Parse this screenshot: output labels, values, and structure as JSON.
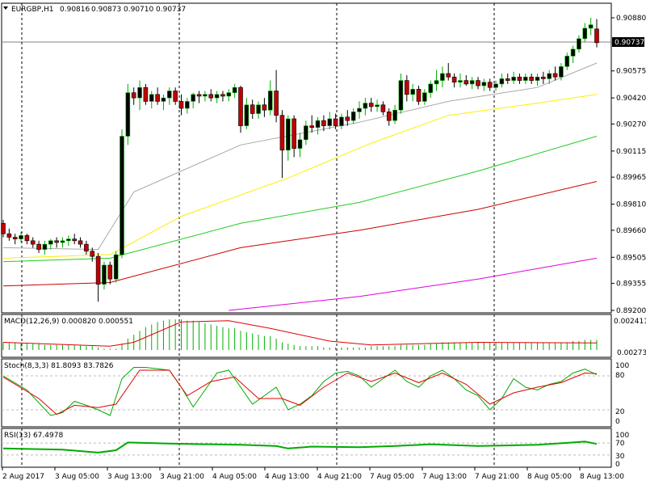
{
  "chart_data": {
    "type": "candlestick",
    "header": {
      "symbol": "EURGBP,H1",
      "open": "0.90816",
      "high": "0.90873",
      "low": "0.90710",
      "close": "0.90737"
    },
    "current_price": "0.90737",
    "price_axis": {
      "ticks": [
        "0.90880",
        "0.90575",
        "0.90420",
        "0.90270",
        "0.90115",
        "0.89965",
        "0.89810",
        "0.89660",
        "0.89505",
        "0.89355",
        "0.89200"
      ],
      "ylim": [
        0.892,
        0.9088
      ]
    },
    "time_axis": [
      "2 Aug 2017",
      "3 Aug 05:00",
      "3 Aug 13:00",
      "3 Aug 21:00",
      "4 Aug 05:00",
      "4 Aug 13:00",
      "4 Aug 21:00",
      "7 Aug 05:00",
      "7 Aug 13:00",
      "7 Aug 21:00",
      "8 Aug 05:00",
      "8 Aug 13:00"
    ],
    "period_separators": [
      "3 Aug 21:00",
      "4 Aug 21:00",
      "7 Aug 21:00"
    ],
    "candles": [
      [
        0.897,
        0.8972,
        0.8962,
        0.8964
      ],
      [
        0.8964,
        0.8967,
        0.896,
        0.8962
      ],
      [
        0.8962,
        0.8964,
        0.8958,
        0.8961
      ],
      [
        0.8961,
        0.8965,
        0.8959,
        0.8963
      ],
      [
        0.8963,
        0.8964,
        0.8958,
        0.896
      ],
      [
        0.896,
        0.8962,
        0.8956,
        0.8958
      ],
      [
        0.8958,
        0.896,
        0.8953,
        0.8955
      ],
      [
        0.8955,
        0.896,
        0.8952,
        0.8958
      ],
      [
        0.8958,
        0.8961,
        0.8955,
        0.896
      ],
      [
        0.896,
        0.8962,
        0.8956,
        0.8959
      ],
      [
        0.8959,
        0.8962,
        0.8956,
        0.896
      ],
      [
        0.896,
        0.8963,
        0.8957,
        0.8961
      ],
      [
        0.8961,
        0.8964,
        0.8958,
        0.896
      ],
      [
        0.896,
        0.8962,
        0.8956,
        0.8958
      ],
      [
        0.8958,
        0.896,
        0.8952,
        0.8954
      ],
      [
        0.8954,
        0.8956,
        0.8948,
        0.8951
      ],
      [
        0.8951,
        0.8953,
        0.8925,
        0.8935
      ],
      [
        0.8935,
        0.8948,
        0.8932,
        0.8946
      ],
      [
        0.8946,
        0.8948,
        0.8935,
        0.8938
      ],
      [
        0.8938,
        0.8954,
        0.8936,
        0.8952
      ],
      [
        0.8952,
        0.9024,
        0.895,
        0.902
      ],
      [
        0.902,
        0.905,
        0.9015,
        0.9045
      ],
      [
        0.9045,
        0.9048,
        0.9038,
        0.9042
      ],
      [
        0.9042,
        0.9052,
        0.9035,
        0.9048
      ],
      [
        0.9048,
        0.905,
        0.9038,
        0.904
      ],
      [
        0.904,
        0.9046,
        0.9036,
        0.9044
      ],
      [
        0.9044,
        0.9048,
        0.9038,
        0.904
      ],
      [
        0.904,
        0.9044,
        0.9035,
        0.9042
      ],
      [
        0.9042,
        0.9048,
        0.9038,
        0.9046
      ],
      [
        0.9046,
        0.9048,
        0.9038,
        0.904
      ],
      [
        0.904,
        0.9044,
        0.9032,
        0.9036
      ],
      [
        0.9036,
        0.9042,
        0.9033,
        0.904
      ],
      [
        0.904,
        0.9045,
        0.9036,
        0.9044
      ],
      [
        0.9044,
        0.9046,
        0.9039,
        0.9043
      ],
      [
        0.9043,
        0.9046,
        0.904,
        0.9044
      ],
      [
        0.9044,
        0.9047,
        0.904,
        0.9042
      ],
      [
        0.9042,
        0.9046,
        0.9039,
        0.9044
      ],
      [
        0.9044,
        0.9046,
        0.904,
        0.9043
      ],
      [
        0.9043,
        0.9047,
        0.904,
        0.9045
      ],
      [
        0.9045,
        0.905,
        0.9042,
        0.9048
      ],
      [
        0.9048,
        0.9049,
        0.9022,
        0.9026
      ],
      [
        0.9026,
        0.9042,
        0.9024,
        0.9038
      ],
      [
        0.9038,
        0.9041,
        0.903,
        0.9033
      ],
      [
        0.9033,
        0.904,
        0.903,
        0.9038
      ],
      [
        0.9038,
        0.9042,
        0.9031,
        0.9035
      ],
      [
        0.9035,
        0.9052,
        0.9032,
        0.9046
      ],
      [
        0.9046,
        0.9058,
        0.9028,
        0.9032
      ],
      [
        0.9032,
        0.9035,
        0.8996,
        0.9012
      ],
      [
        0.9012,
        0.9032,
        0.9006,
        0.903
      ],
      [
        0.903,
        0.9032,
        0.9008,
        0.9013
      ],
      [
        0.9013,
        0.9022,
        0.9008,
        0.9018
      ],
      [
        0.9018,
        0.9029,
        0.9015,
        0.9026
      ],
      [
        0.9026,
        0.9032,
        0.9022,
        0.9025
      ],
      [
        0.9025,
        0.9031,
        0.9021,
        0.9029
      ],
      [
        0.9029,
        0.9032,
        0.9023,
        0.9026
      ],
      [
        0.9026,
        0.9034,
        0.9024,
        0.903
      ],
      [
        0.903,
        0.9033,
        0.9024,
        0.9026
      ],
      [
        0.9026,
        0.9033,
        0.9024,
        0.9031
      ],
      [
        0.9031,
        0.9035,
        0.9026,
        0.9029
      ],
      [
        0.9029,
        0.9036,
        0.9027,
        0.9034
      ],
      [
        0.9034,
        0.904,
        0.903,
        0.9036
      ],
      [
        0.9036,
        0.9042,
        0.9032,
        0.9039
      ],
      [
        0.9039,
        0.9042,
        0.9034,
        0.9037
      ],
      [
        0.9037,
        0.9041,
        0.9034,
        0.9038
      ],
      [
        0.9038,
        0.904,
        0.9032,
        0.9034
      ],
      [
        0.9034,
        0.9036,
        0.9026,
        0.9029
      ],
      [
        0.9029,
        0.9038,
        0.9027,
        0.9035
      ],
      [
        0.9035,
        0.9056,
        0.9033,
        0.9052
      ],
      [
        0.9052,
        0.9055,
        0.904,
        0.9044
      ],
      [
        0.9044,
        0.905,
        0.904,
        0.9047
      ],
      [
        0.9047,
        0.9049,
        0.9038,
        0.904
      ],
      [
        0.904,
        0.9047,
        0.9038,
        0.9045
      ],
      [
        0.9045,
        0.9052,
        0.9042,
        0.905
      ],
      [
        0.905,
        0.9058,
        0.9046,
        0.9052
      ],
      [
        0.9052,
        0.906,
        0.9048,
        0.9056
      ],
      [
        0.9056,
        0.9062,
        0.9052,
        0.9054
      ],
      [
        0.9054,
        0.9056,
        0.9048,
        0.9051
      ],
      [
        0.9051,
        0.9056,
        0.9048,
        0.9052
      ],
      [
        0.9052,
        0.9055,
        0.9049,
        0.905
      ],
      [
        0.905,
        0.9054,
        0.9047,
        0.9052
      ],
      [
        0.9052,
        0.9054,
        0.9047,
        0.9049
      ],
      [
        0.9049,
        0.9053,
        0.9046,
        0.9051
      ],
      [
        0.9051,
        0.9053,
        0.9046,
        0.9048
      ],
      [
        0.9048,
        0.9052,
        0.9046,
        0.905
      ],
      [
        0.905,
        0.9056,
        0.9048,
        0.9053
      ],
      [
        0.9053,
        0.9056,
        0.905,
        0.9052
      ],
      [
        0.9052,
        0.9057,
        0.905,
        0.9054
      ],
      [
        0.9054,
        0.9056,
        0.905,
        0.9052
      ],
      [
        0.9052,
        0.9056,
        0.905,
        0.9054
      ],
      [
        0.9054,
        0.9056,
        0.905,
        0.9052
      ],
      [
        0.9052,
        0.9056,
        0.9049,
        0.9054
      ],
      [
        0.9054,
        0.9057,
        0.905,
        0.9053
      ],
      [
        0.9053,
        0.9058,
        0.905,
        0.9056
      ],
      [
        0.9056,
        0.906,
        0.9052,
        0.9054
      ],
      [
        0.9054,
        0.9062,
        0.9052,
        0.906
      ],
      [
        0.906,
        0.9068,
        0.9058,
        0.9066
      ],
      [
        0.9066,
        0.9072,
        0.9062,
        0.907
      ],
      [
        0.907,
        0.9078,
        0.9068,
        0.9076
      ],
      [
        0.9076,
        0.9085,
        0.9074,
        0.9082
      ],
      [
        0.9082,
        0.9088,
        0.9078,
        0.9084
      ],
      [
        0.90816,
        0.90873,
        0.9071,
        0.90737
      ]
    ],
    "moving_averages": [
      {
        "color": "#a8a8a8",
        "values": [
          [
            0,
            0.8956
          ],
          [
            16,
            0.8955
          ],
          [
            22,
            0.8988
          ],
          [
            40,
            0.9015
          ],
          [
            60,
            0.9028
          ],
          [
            75,
            0.904
          ],
          [
            90,
            0.9048
          ],
          [
            100,
            0.9062
          ]
        ]
      },
      {
        "color": "#ffee00",
        "values": [
          [
            0,
            0.895
          ],
          [
            18,
            0.8952
          ],
          [
            30,
            0.8974
          ],
          [
            48,
            0.8996
          ],
          [
            62,
            0.9016
          ],
          [
            75,
            0.9032
          ],
          [
            90,
            0.9039
          ],
          [
            100,
            0.9044
          ]
        ]
      },
      {
        "color": "#22cc22",
        "values": [
          [
            0,
            0.8948
          ],
          [
            18,
            0.895
          ],
          [
            40,
            0.897
          ],
          [
            60,
            0.8982
          ],
          [
            80,
            0.9
          ],
          [
            100,
            0.902
          ]
        ]
      },
      {
        "color": "#cc0000",
        "values": [
          [
            0,
            0.8934
          ],
          [
            18,
            0.8936
          ],
          [
            40,
            0.8956
          ],
          [
            60,
            0.8966
          ],
          [
            80,
            0.8978
          ],
          [
            100,
            0.8994
          ]
        ]
      },
      {
        "color": "#dd00dd",
        "values": [
          [
            38,
            0.892
          ],
          [
            60,
            0.8928
          ],
          [
            80,
            0.8938
          ],
          [
            100,
            0.895
          ]
        ]
      }
    ],
    "macd": {
      "label": "MACD(12,26,9) 0.000820 0.000551",
      "ticks": [
        "0.002411",
        "0.00273"
      ],
      "histogram": [
        0.0006,
        0.0006,
        0.0006,
        0.0005,
        0.0005,
        0.0005,
        0.0005,
        0.0004,
        0.0004,
        0.0004,
        0.0004,
        0.0004,
        0.0004,
        0.0004,
        0.0003,
        0.0003,
        0.0002,
        0.0001,
        0.0001,
        0.0001,
        0.0005,
        0.0009,
        0.0012,
        0.0015,
        0.0018,
        0.002,
        0.0022,
        0.0023,
        0.0024,
        0.0024,
        0.0024,
        0.0023,
        0.0023,
        0.0022,
        0.0021,
        0.002,
        0.0019,
        0.0018,
        0.0017,
        0.0017,
        0.0015,
        0.0014,
        0.0013,
        0.0012,
        0.0011,
        0.0011,
        0.0009,
        0.0006,
        0.0005,
        0.0004,
        0.0003,
        0.0003,
        0.0003,
        0.0003,
        0.0002,
        0.0002,
        0.0002,
        0.0002,
        0.0002,
        0.0002,
        0.0002,
        0.0002,
        0.0003,
        0.0003,
        0.0003,
        0.0003,
        0.0003,
        0.0004,
        0.0004,
        0.0004,
        0.0004,
        0.0004,
        0.0005,
        0.0005,
        0.0006,
        0.0006,
        0.0006,
        0.0006,
        0.0006,
        0.0006,
        0.0006,
        0.0006,
        0.0006,
        0.0006,
        0.0006,
        0.0006,
        0.0006,
        0.0006,
        0.0006,
        0.0006,
        0.0006,
        0.0006,
        0.0006,
        0.0006,
        0.0006,
        0.0006,
        0.0007,
        0.0007,
        0.0008,
        0.0008,
        0.0008
      ],
      "signal": [
        [
          0,
          0.0006
        ],
        [
          18,
          0.0003
        ],
        [
          22,
          0.0006
        ],
        [
          30,
          0.0022
        ],
        [
          38,
          0.0023
        ],
        [
          45,
          0.0017
        ],
        [
          55,
          0.0007
        ],
        [
          62,
          0.0004
        ],
        [
          80,
          0.0006
        ],
        [
          100,
          0.00055
        ]
      ]
    },
    "stochastic": {
      "label": "Stoch(8,3,3) 81.8093 83.7826",
      "ticks": [
        "100",
        "80",
        "20",
        "0"
      ],
      "main": [
        [
          0,
          80
        ],
        [
          4,
          55
        ],
        [
          8,
          10
        ],
        [
          10,
          15
        ],
        [
          12,
          35
        ],
        [
          14,
          28
        ],
        [
          16,
          20
        ],
        [
          18,
          10
        ],
        [
          20,
          75
        ],
        [
          22,
          95
        ],
        [
          24,
          95
        ],
        [
          28,
          90
        ],
        [
          30,
          60
        ],
        [
          32,
          25
        ],
        [
          34,
          55
        ],
        [
          36,
          85
        ],
        [
          38,
          90
        ],
        [
          40,
          60
        ],
        [
          42,
          30
        ],
        [
          44,
          45
        ],
        [
          46,
          60
        ],
        [
          48,
          20
        ],
        [
          50,
          30
        ],
        [
          52,
          45
        ],
        [
          54,
          70
        ],
        [
          56,
          85
        ],
        [
          58,
          88
        ],
        [
          60,
          80
        ],
        [
          62,
          60
        ],
        [
          64,
          75
        ],
        [
          66,
          90
        ],
        [
          68,
          70
        ],
        [
          70,
          60
        ],
        [
          72,
          80
        ],
        [
          74,
          90
        ],
        [
          76,
          75
        ],
        [
          78,
          55
        ],
        [
          80,
          45
        ],
        [
          82,
          20
        ],
        [
          84,
          40
        ],
        [
          86,
          75
        ],
        [
          88,
          60
        ],
        [
          90,
          55
        ],
        [
          92,
          65
        ],
        [
          94,
          70
        ],
        [
          96,
          85
        ],
        [
          98,
          92
        ],
        [
          100,
          82
        ]
      ],
      "signal": [
        [
          0,
          78
        ],
        [
          6,
          40
        ],
        [
          9,
          12
        ],
        [
          12,
          28
        ],
        [
          16,
          24
        ],
        [
          19,
          30
        ],
        [
          23,
          90
        ],
        [
          28,
          90
        ],
        [
          31,
          45
        ],
        [
          35,
          70
        ],
        [
          39,
          78
        ],
        [
          43,
          40
        ],
        [
          47,
          40
        ],
        [
          50,
          28
        ],
        [
          54,
          60
        ],
        [
          58,
          85
        ],
        [
          62,
          70
        ],
        [
          66,
          85
        ],
        [
          70,
          68
        ],
        [
          74,
          85
        ],
        [
          78,
          65
        ],
        [
          82,
          30
        ],
        [
          86,
          50
        ],
        [
          90,
          60
        ],
        [
          94,
          68
        ],
        [
          98,
          85
        ],
        [
          100,
          84
        ]
      ]
    },
    "rsi": {
      "label": "RSI(13) 67.4978",
      "ticks": [
        "100",
        "70",
        "30",
        "0"
      ],
      "values": [
        [
          0,
          52
        ],
        [
          10,
          48
        ],
        [
          16,
          38
        ],
        [
          19,
          46
        ],
        [
          21,
          72
        ],
        [
          28,
          68
        ],
        [
          40,
          64
        ],
        [
          46,
          60
        ],
        [
          48,
          52
        ],
        [
          52,
          58
        ],
        [
          60,
          56
        ],
        [
          66,
          60
        ],
        [
          72,
          66
        ],
        [
          80,
          60
        ],
        [
          90,
          64
        ],
        [
          96,
          72
        ],
        [
          98,
          75
        ],
        [
          100,
          67
        ]
      ]
    }
  }
}
